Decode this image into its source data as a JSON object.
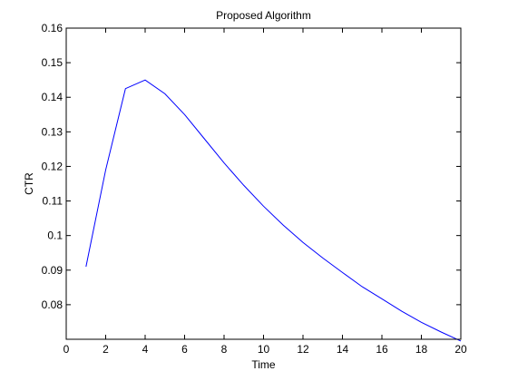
{
  "chart_data": {
    "type": "line",
    "title": "Proposed Algorithm",
    "xlabel": "Time",
    "ylabel": "CTR",
    "xlim": [
      0,
      20
    ],
    "ylim": [
      0.07,
      0.16
    ],
    "xticks": [
      0,
      2,
      4,
      6,
      8,
      10,
      12,
      14,
      16,
      18,
      20
    ],
    "yticks": [
      0.08,
      0.09,
      0.1,
      0.11,
      0.12,
      0.13,
      0.14,
      0.15,
      0.16
    ],
    "xtick_labels": [
      "0",
      "2",
      "4",
      "6",
      "8",
      "10",
      "12",
      "14",
      "16",
      "18",
      "20"
    ],
    "ytick_labels": [
      "0.08",
      "0.09",
      "0.1",
      "0.11",
      "0.12",
      "0.13",
      "0.14",
      "0.15",
      "0.16"
    ],
    "grid": false,
    "legend": "none",
    "series": [
      {
        "color": "#0000ff",
        "x": [
          1,
          2,
          3,
          4,
          5,
          6,
          7,
          8,
          9,
          10,
          11,
          12,
          13,
          14,
          15,
          16,
          17,
          18,
          19,
          20
        ],
        "y": [
          0.091,
          0.119,
          0.1425,
          0.145,
          0.141,
          0.135,
          0.128,
          0.121,
          0.1145,
          0.1085,
          0.103,
          0.098,
          0.0935,
          0.0893,
          0.0852,
          0.0817,
          0.0781,
          0.0749,
          0.0721,
          0.0695
        ]
      }
    ]
  }
}
